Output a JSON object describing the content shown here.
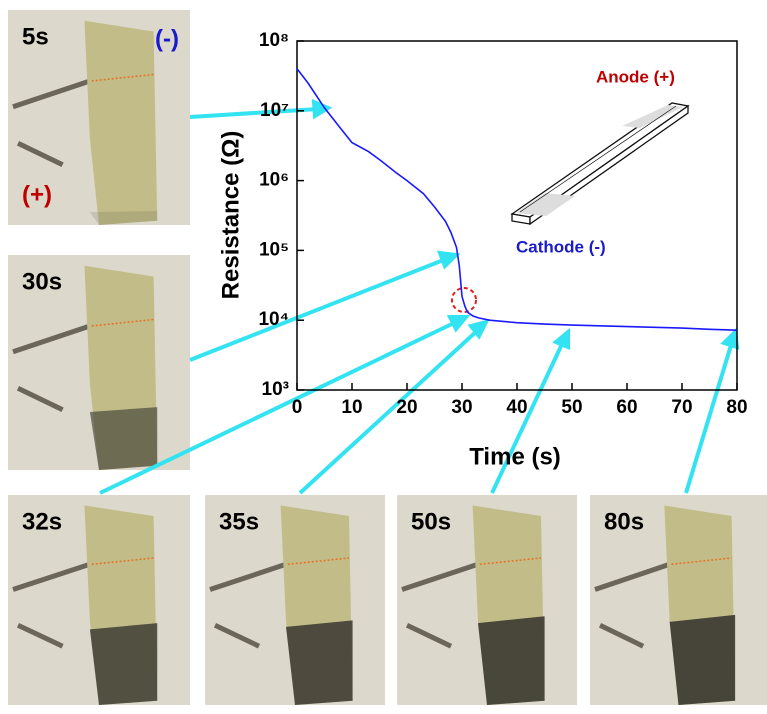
{
  "chart_data": {
    "type": "line",
    "x_label": "Time (s)",
    "y_label": "Resistance (Ω)",
    "x": [
      0,
      2,
      5,
      8,
      10,
      13,
      15,
      18,
      20,
      23,
      25,
      27,
      28,
      29,
      29.5,
      30,
      30.5,
      31,
      32,
      33,
      35,
      40,
      45,
      50,
      55,
      60,
      65,
      70,
      75,
      80
    ],
    "values": [
      40000000,
      25000000,
      11000000,
      5500000,
      3500000,
      2600000,
      2000000,
      1300000,
      1000000,
      650000,
      420000,
      260000,
      180000,
      110000,
      60000,
      22000,
      16000,
      13000,
      11500,
      10800,
      10000,
      9200,
      8800,
      8500,
      8300,
      8100,
      7900,
      7700,
      7400,
      7200
    ],
    "color": "#1a1aff",
    "log_y": true,
    "xlim": [
      0,
      80
    ],
    "xticks": [
      0,
      10,
      20,
      30,
      40,
      50,
      60,
      70,
      80
    ],
    "ylim": [
      1000,
      100000000
    ],
    "yticks": [
      {
        "value": 1000,
        "label": "10³"
      },
      {
        "value": 10000,
        "label": "10⁴"
      },
      {
        "value": 100000,
        "label": "10⁵"
      },
      {
        "value": 1000000,
        "label": "10⁶"
      },
      {
        "value": 10000000,
        "label": "10⁷"
      },
      {
        "value": 100000000,
        "label": "10⁸"
      }
    ],
    "annotations": {
      "anode": "Anode (+)",
      "cathode": "Cathode (-)"
    },
    "photo_labels": [
      "5s",
      "30s",
      "32s",
      "35s",
      "50s",
      "80s"
    ],
    "polarity_labels": {
      "minus": "(-)",
      "plus": "(+)"
    }
  }
}
